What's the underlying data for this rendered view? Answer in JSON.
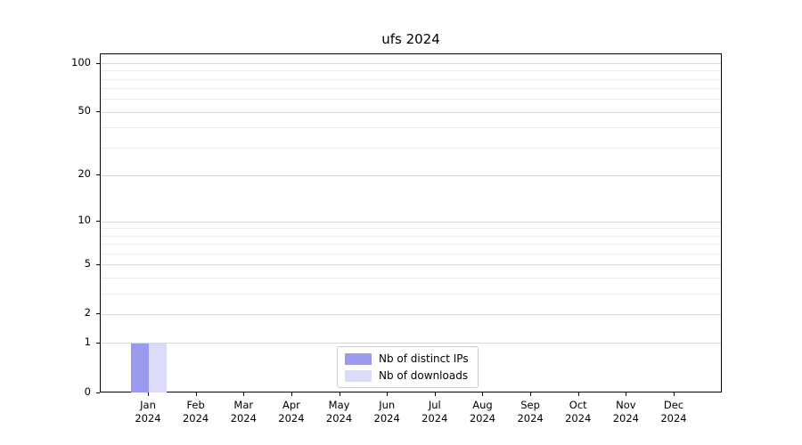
{
  "figure": {
    "title": "ufs 2024"
  },
  "chart_data": {
    "type": "bar",
    "title": "ufs 2024",
    "categories": [
      "Jan",
      "Feb",
      "Mar",
      "Apr",
      "May",
      "Jun",
      "Jul",
      "Aug",
      "Sep",
      "Oct",
      "Nov",
      "Dec"
    ],
    "category_year": "2024",
    "series": [
      {
        "name": "Nb of distinct IPs",
        "color": "#9a9aee",
        "values": [
          1,
          0,
          0,
          0,
          0,
          0,
          0,
          0,
          0,
          0,
          0,
          0
        ]
      },
      {
        "name": "Nb of downloads",
        "color": "#dcdcf8",
        "values": [
          1,
          0,
          0,
          0,
          0,
          0,
          0,
          0,
          0,
          0,
          0,
          0
        ]
      }
    ],
    "xlabel": "",
    "ylabel": "",
    "y_axis": {
      "scale": "symlog",
      "ticks": [
        0,
        1,
        2,
        5,
        10,
        20,
        50,
        100
      ],
      "minor_gridlines": [
        3,
        4,
        6,
        7,
        8,
        9,
        30,
        40,
        60,
        70,
        80,
        90
      ],
      "ylim": [
        0,
        100
      ]
    },
    "grid": true,
    "legend": {
      "position": "lower center",
      "entries": [
        "Nb of distinct IPs",
        "Nb of downloads"
      ]
    }
  }
}
